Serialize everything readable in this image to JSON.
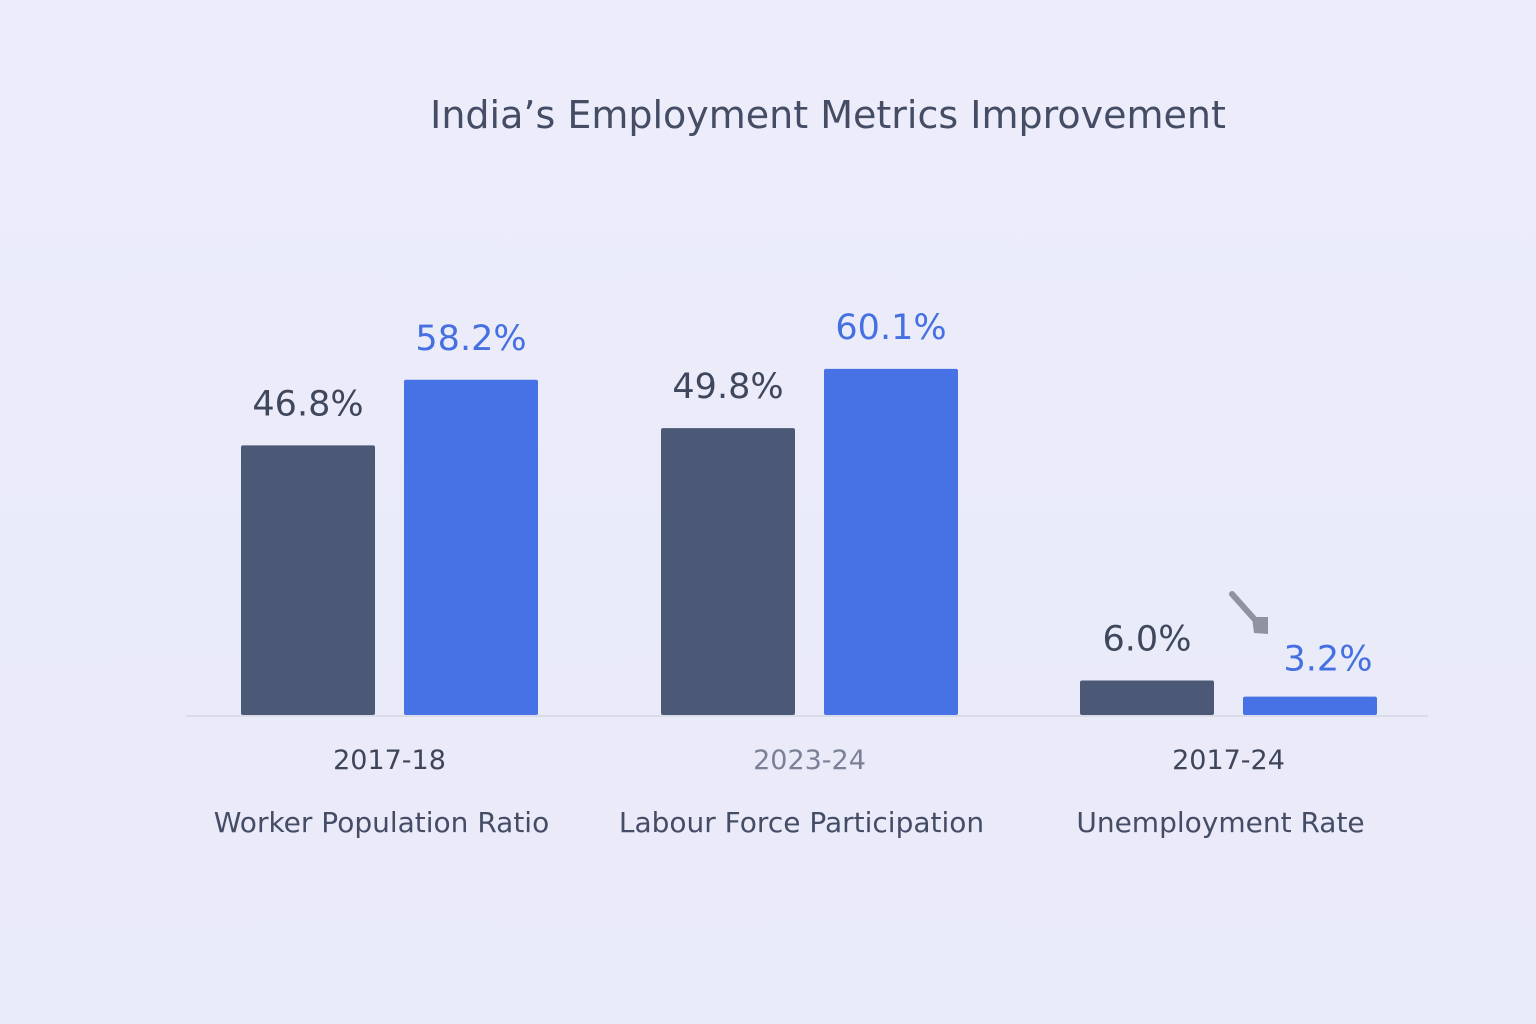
{
  "chart_data": {
    "type": "bar",
    "title": "India’s Employment Metrics Improvement",
    "categories": [
      "Worker Population Ratio",
      "Labour Force Participation",
      "Unemployment Rate"
    ],
    "period_labels": [
      "2017-18",
      "2023-24",
      "2017-24"
    ],
    "series": [
      {
        "name": "2017-18",
        "values": [
          46.8,
          49.8,
          6.0
        ],
        "labels": [
          "46.8%",
          "49.8%",
          "6.0%"
        ]
      },
      {
        "name": "2023-24",
        "values": [
          58.2,
          60.1,
          3.2
        ],
        "labels": [
          "58.2%",
          "60.1%",
          "3.2%"
        ]
      }
    ],
    "xlabel": "",
    "ylabel": "",
    "ylim": [
      0,
      70
    ],
    "grid": false,
    "legend": "none"
  },
  "colors": {
    "series_dark": "#4b5876",
    "series_blue": "#4672e6",
    "label_dark": "#3f475d",
    "label_blue": "#4570e2",
    "period_dark": "#3e4559",
    "period_muted": "#7a8196",
    "baseline": "#d9dbe8",
    "arrow": "#8f939f"
  },
  "annotations": {
    "unemployment_arrow_icon": "down-arrow-icon"
  }
}
